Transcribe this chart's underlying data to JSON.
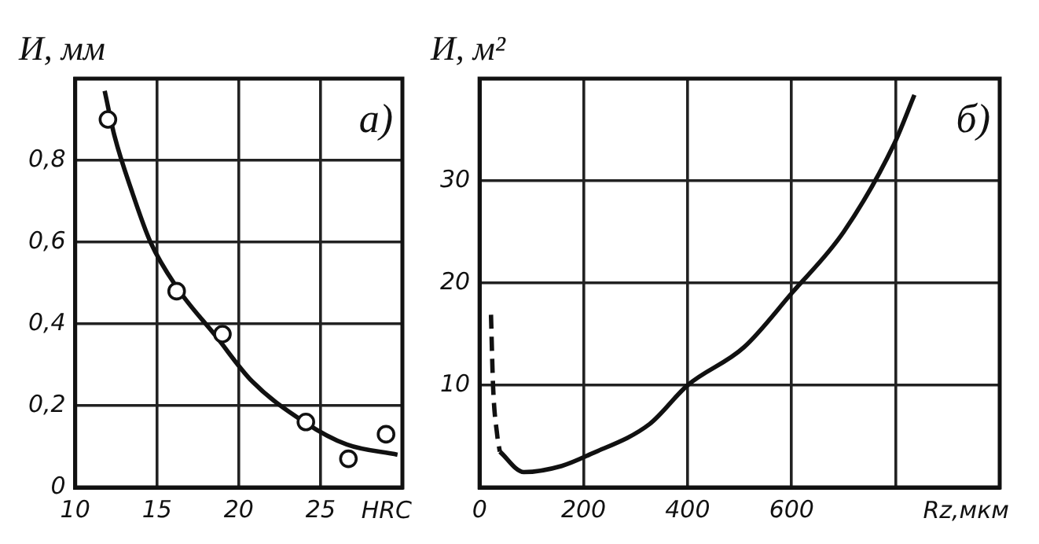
{
  "chart_data": [
    {
      "type": "line",
      "ylabel": "И, мм",
      "xlabel": "HRC",
      "annotations": [
        "а)"
      ],
      "xlim": [
        10,
        30
      ],
      "xticks": [
        10,
        15,
        20,
        25
      ],
      "ylim": [
        0,
        1
      ],
      "yticks": [
        0,
        {
          "value": 0.2,
          "label": "0,2"
        },
        {
          "value": 0.4,
          "label": "0,4"
        },
        {
          "value": 0.6,
          "label": "0,6"
        },
        {
          "value": 0.8,
          "label": "0,8"
        }
      ],
      "grid": true,
      "series": [
        {
          "type": "scatter",
          "color": "#111111",
          "marker": "circle",
          "x": [
            12.0,
            16.2,
            19.0,
            24.1,
            26.7,
            29.0
          ],
          "values": [
            0.9,
            0.48,
            0.375,
            0.16,
            0.07,
            0.13
          ]
        },
        {
          "color": "#111111",
          "marker": "none",
          "x": [
            11.8,
            12.4,
            13.5,
            14.6,
            16.2,
            18.6,
            20.8,
            24.0,
            26.6,
            29.7
          ],
          "values": [
            0.97,
            0.86,
            0.72,
            0.6,
            0.49,
            0.37,
            0.26,
            0.16,
            0.105,
            0.08
          ]
        }
      ]
    },
    {
      "type": "line",
      "ylabel": "И, м²",
      "xlabel": "Rz,мкм",
      "annotations": [
        "б)"
      ],
      "xlim": [
        0,
        1000
      ],
      "xticks": [
        0,
        200,
        400,
        600,
        {
          "value": 800,
          "label": null
        }
      ],
      "ylim": [
        0,
        40
      ],
      "yticks": [
        {
          "value": 0,
          "label": null
        },
        10,
        20,
        30
      ],
      "grid": true,
      "series": [
        {
          "color": "#111111",
          "marker": "none",
          "line_style": "dashed",
          "x": [
            22,
            26,
            34,
            39
          ],
          "values": [
            16.9,
            9.9,
            5.1,
            3.5
          ]
        },
        {
          "color": "#111111",
          "marker": "none",
          "line_style": "solid",
          "x": [
            39,
            85,
            158,
            211,
            327,
            400,
            508,
            600,
            700,
            797,
            836
          ],
          "values": [
            3.5,
            1.5,
            2.1,
            3.2,
            6.2,
            10,
            13.7,
            19,
            25,
            33.6,
            38.4
          ]
        }
      ]
    }
  ]
}
